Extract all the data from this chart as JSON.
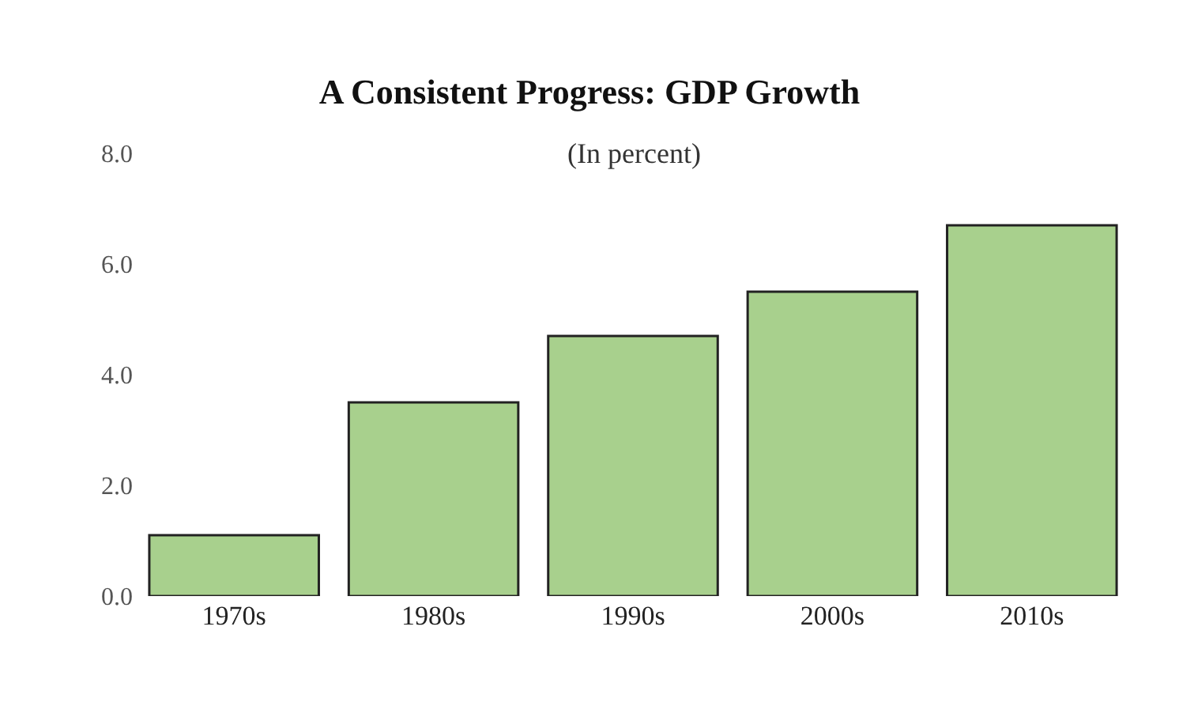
{
  "chart_data": {
    "type": "bar",
    "title": "A Consistent Progress: GDP Growth",
    "subtitle": "(In percent)",
    "categories": [
      "1970s",
      "1980s",
      "1990s",
      "2000s",
      "2010s"
    ],
    "values": [
      1.1,
      3.5,
      4.7,
      5.5,
      6.7
    ],
    "color": "#a8d08d",
    "ylim": [
      0,
      8
    ],
    "yticks": [
      {
        "value": 0,
        "label": "0.0"
      },
      {
        "value": 2,
        "label": "2.0"
      },
      {
        "value": 4,
        "label": "4.0"
      },
      {
        "value": 6,
        "label": "6.0"
      },
      {
        "value": 8,
        "label": "8.0"
      }
    ]
  }
}
